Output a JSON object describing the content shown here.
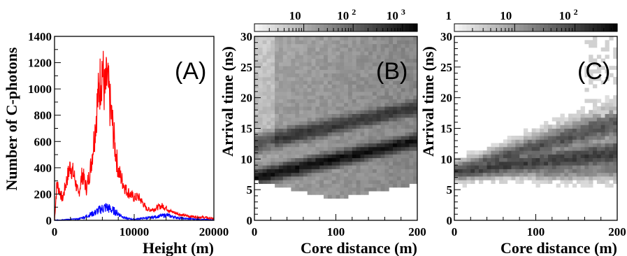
{
  "chart_data": [
    {
      "type": "line",
      "panel_label": "(A)",
      "xlabel": "Height (m)",
      "ylabel": "Number of C-photons",
      "xlim": [
        0,
        20000
      ],
      "ylim": [
        0,
        1400
      ],
      "x_ticks": [
        "0",
        "10000",
        "20000"
      ],
      "y_ticks": [
        "0",
        "200",
        "400",
        "600",
        "800",
        "1000",
        "1200",
        "1400"
      ],
      "series": [
        {
          "color": "#ff0000",
          "x": [
            0,
            300,
            600,
            1000,
            1500,
            2000,
            2500,
            3000,
            3500,
            4000,
            4500,
            5000,
            5300,
            5600,
            6000,
            6300,
            6600,
            7000,
            7300,
            7600,
            8000,
            8500,
            9000,
            9500,
            10000,
            10500,
            11000,
            11500,
            12000,
            12500,
            13000,
            13500,
            14000,
            14500,
            15000,
            15500,
            16000,
            17000,
            18000,
            19000,
            20000
          ],
          "values": [
            0,
            280,
            230,
            160,
            300,
            420,
            330,
            190,
            360,
            240,
            390,
            640,
            850,
            1000,
            1180,
            950,
            1080,
            860,
            720,
            550,
            380,
            300,
            230,
            200,
            170,
            180,
            140,
            90,
            80,
            85,
            100,
            110,
            95,
            70,
            60,
            50,
            40,
            30,
            25,
            20,
            10
          ]
        },
        {
          "color": "#0000ff",
          "x": [
            0,
            1000,
            2000,
            3000,
            3500,
            4000,
            4500,
            5000,
            5500,
            6000,
            6500,
            7000,
            7500,
            8000,
            8500,
            9000,
            10000,
            11000,
            12000,
            13000,
            14000,
            15000,
            16000,
            18000,
            20000
          ],
          "values": [
            0,
            5,
            8,
            10,
            20,
            30,
            45,
            55,
            75,
            90,
            100,
            85,
            70,
            50,
            30,
            15,
            8,
            15,
            20,
            30,
            40,
            25,
            15,
            8,
            3
          ]
        }
      ]
    },
    {
      "type": "heatmap",
      "panel_label": "(B)",
      "xlabel": "Core distance (m)",
      "ylabel": "Arrival time (ns)",
      "xlim": [
        0,
        200
      ],
      "ylim": [
        0,
        30
      ],
      "x_ticks": [
        "0",
        "100",
        "200"
      ],
      "y_ticks": [
        "0",
        "5",
        "10",
        "15",
        "20",
        "25",
        "30"
      ],
      "colorbar_ticks": [
        "10",
        "10",
        "10"
      ],
      "colorbar_tick_exponents": [
        "",
        "2",
        "3"
      ],
      "colorbar_log_range": [
        0,
        3.3
      ],
      "bands": [
        {
          "t0": 7.0,
          "slope": 0.03,
          "width": 1.6,
          "level": 2.4
        },
        {
          "t0": 12.5,
          "slope": 0.03,
          "width": 1.8,
          "level": 1.9
        }
      ],
      "lower_edge": {
        "t_at_0": 6.5,
        "t_at_100": 3.5,
        "t_at_200": 6.0
      },
      "halo_level": 1.15
    },
    {
      "type": "heatmap",
      "panel_label": "(C)",
      "xlabel": "Core distance (m)",
      "ylabel": "Arrival time (ns)",
      "xlim": [
        0,
        200
      ],
      "ylim": [
        0,
        30
      ],
      "x_ticks": [
        "0",
        "100",
        "200"
      ],
      "y_ticks": [
        "0",
        "5",
        "10",
        "15",
        "20",
        "25",
        "30"
      ],
      "colorbar_ticks": [
        "1",
        "10",
        "10"
      ],
      "colorbar_tick_exponents": [
        "",
        "",
        "2"
      ],
      "colorbar_log_range": [
        0,
        2.7
      ],
      "bands": [
        {
          "t0": 8.0,
          "slope": 0.015,
          "width": 1.4,
          "level": 2.0
        },
        {
          "t0": 8.0,
          "slope": 0.04,
          "width": 1.4,
          "level": 1.8
        },
        {
          "t0": 7.5,
          "slope": 0.005,
          "width": 1.0,
          "level": 1.3
        }
      ]
    }
  ]
}
